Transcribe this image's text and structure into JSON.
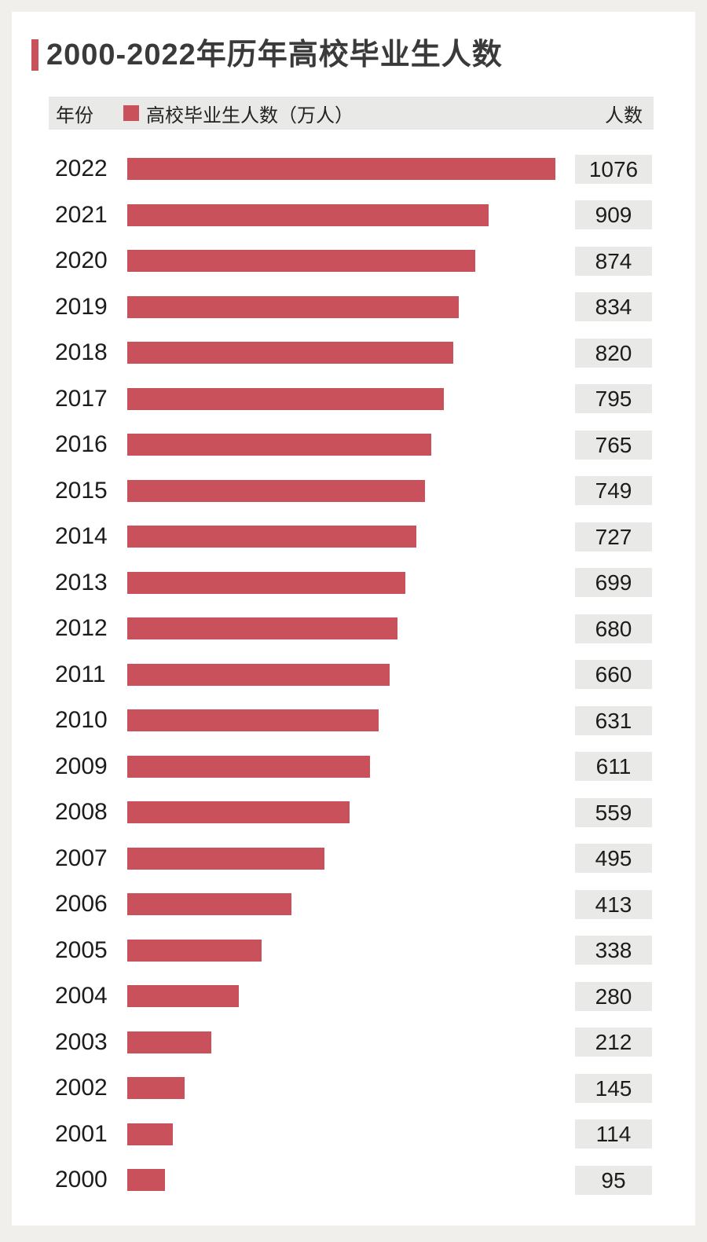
{
  "page": {
    "background_color": "#f0efec",
    "card_color": "#ffffff"
  },
  "header": {
    "title": "2000-2022年历年高校毕业生人数",
    "accent_color": "#c8515c"
  },
  "table_header": {
    "year_label": "年份",
    "series_label": "高校毕业生人数（万人）",
    "count_label": "人数"
  },
  "chart_data": {
    "type": "bar",
    "orientation": "horizontal",
    "title": "2000-2022年历年高校毕业生人数",
    "series_name": "高校毕业生人数（万人）",
    "categories": [
      "2022",
      "2021",
      "2020",
      "2019",
      "2018",
      "2017",
      "2016",
      "2015",
      "2014",
      "2013",
      "2012",
      "2011",
      "2010",
      "2009",
      "2008",
      "2007",
      "2006",
      "2005",
      "2004",
      "2003",
      "2002",
      "2001",
      "2000"
    ],
    "values": [
      1076,
      909,
      874,
      834,
      820,
      795,
      765,
      749,
      727,
      699,
      680,
      660,
      631,
      611,
      559,
      495,
      413,
      338,
      280,
      212,
      145,
      114,
      95
    ],
    "xlim": [
      0,
      1076
    ],
    "bar_color": "#c8515c",
    "value_box_color": "#e9e9e8",
    "grid": false,
    "legend_position": "top"
  }
}
